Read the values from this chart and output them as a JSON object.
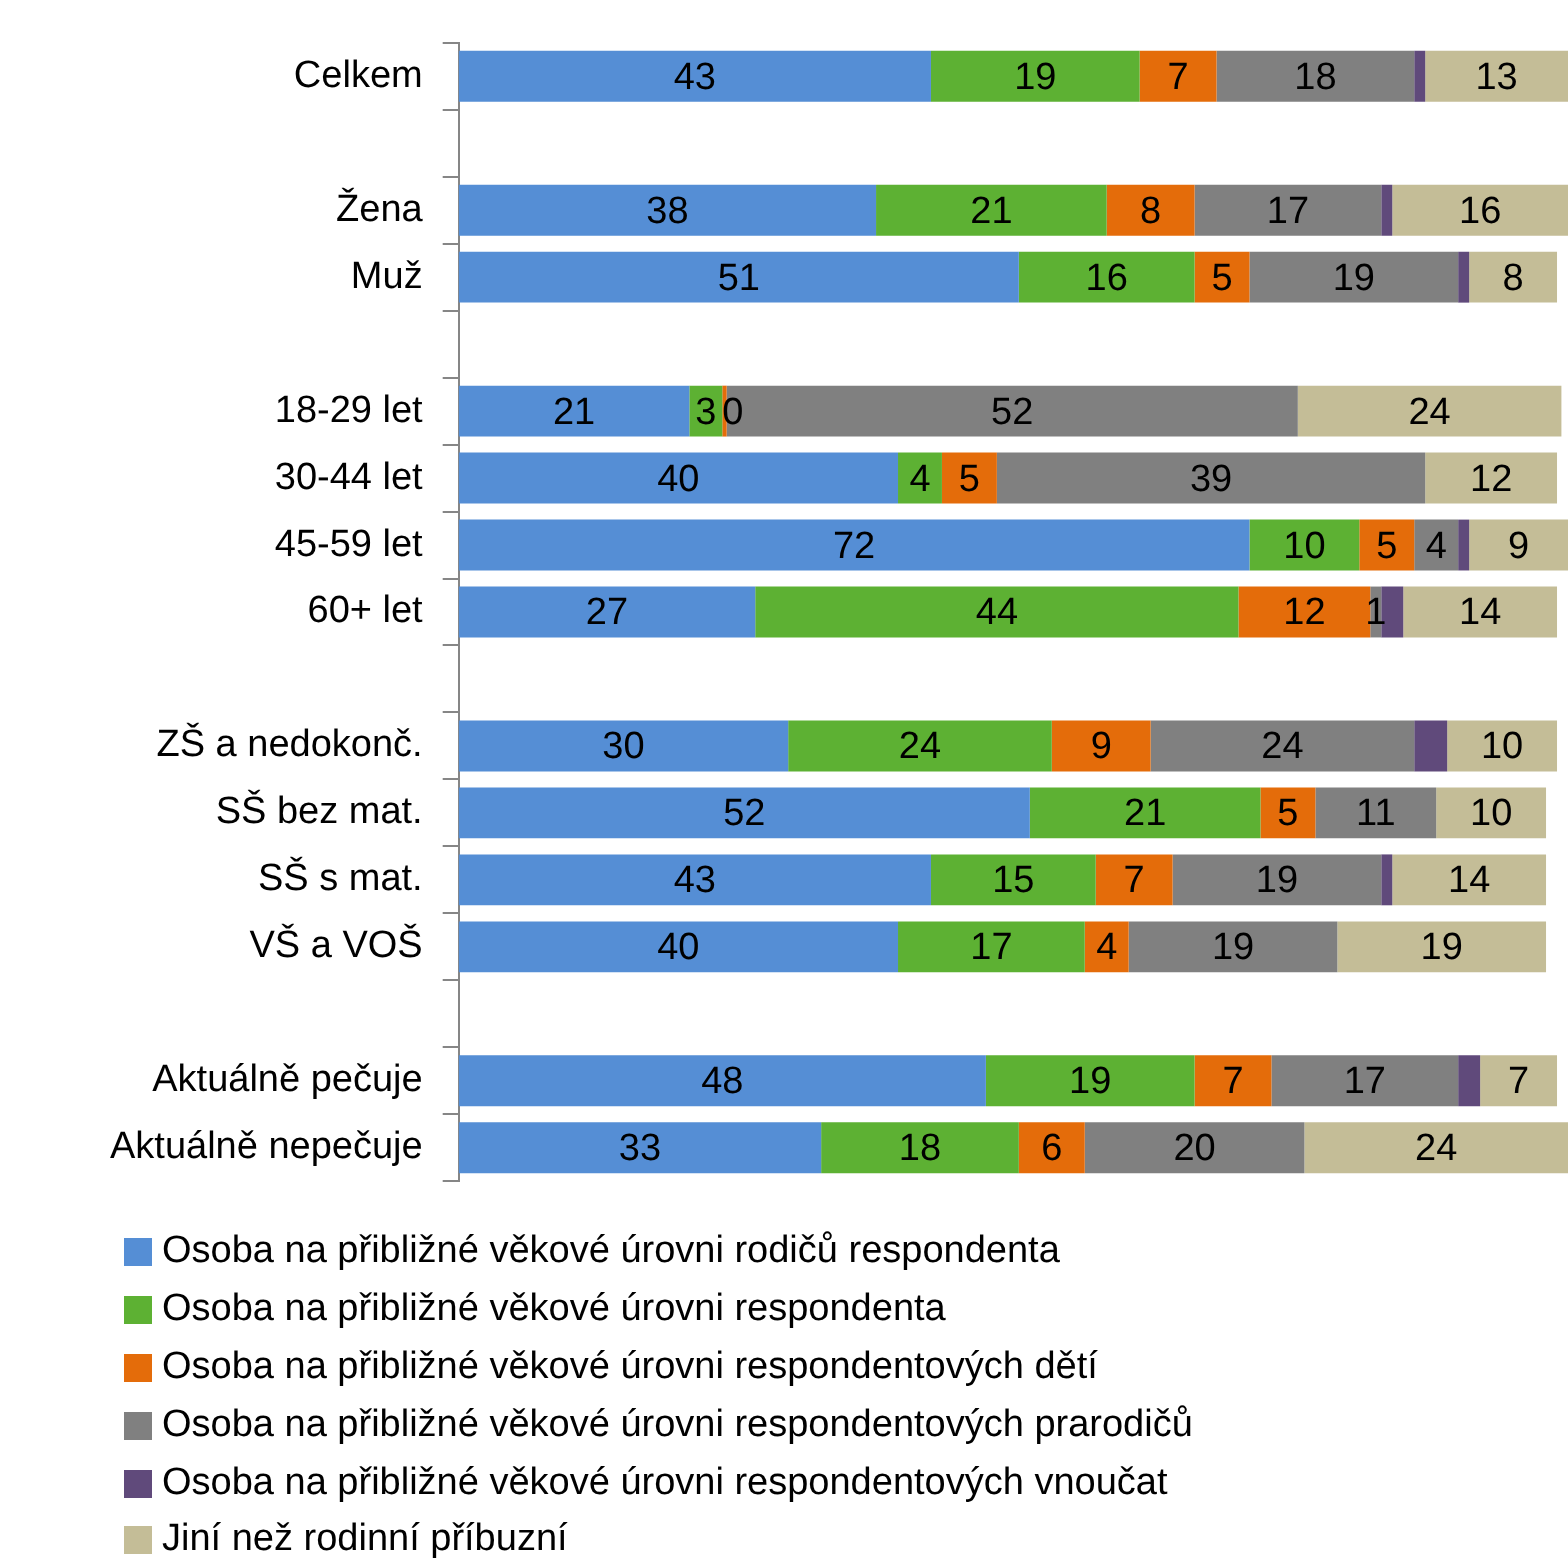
{
  "chart_data": {
    "type": "bar",
    "orientation": "horizontal",
    "stacked": true,
    "grid": false,
    "legend": "bottom",
    "xlim": [
      0,
      101
    ],
    "tick_labels": "y",
    "categories": [
      "Celkem",
      null,
      "Žena",
      "Muž",
      null,
      "18-29 let",
      "30-44 let",
      "45-59 let",
      "60+ let",
      null,
      "ZŠ a nedokonč.",
      "SŠ bez mat.",
      "SŠ s mat.",
      "VŠ a VOŠ",
      null,
      "Aktuálně pečuje",
      "Aktuálně nepečuje"
    ],
    "series": [
      {
        "name": "Osoba na přibližné věkové úrovni rodičů respondenta",
        "color": "#558ed5",
        "values": [
          43,
          null,
          38,
          51,
          null,
          21,
          40,
          72,
          27,
          null,
          30,
          52,
          43,
          40,
          null,
          48,
          33
        ],
        "value_labels": [
          "43",
          null,
          "38",
          "51",
          null,
          "21",
          "40",
          "72",
          "27",
          null,
          "30",
          "52",
          "43",
          "40",
          null,
          "48",
          "33"
        ]
      },
      {
        "name": "Osoba na přibližné věkové úrovni respondenta",
        "color": "#5db133",
        "values": [
          19,
          null,
          21,
          16,
          null,
          3,
          4,
          10,
          44,
          null,
          24,
          21,
          15,
          17,
          null,
          19,
          18
        ],
        "value_labels": [
          "19",
          null,
          "21",
          "16",
          null,
          "3",
          "4",
          "10",
          "44",
          null,
          "24",
          "21",
          "15",
          "17",
          null,
          "19",
          "18"
        ]
      },
      {
        "name": "Osoba na přibližné věkové úrovni respondentových dětí",
        "color": "#e46c0a",
        "values": [
          7,
          null,
          8,
          5,
          null,
          0.4,
          5,
          5,
          12,
          null,
          9,
          5,
          7,
          4,
          null,
          7,
          6
        ],
        "value_labels": [
          "7",
          null,
          "8",
          "5",
          null,
          "0",
          "5",
          "5",
          "12",
          null,
          "9",
          "5",
          "7",
          "4",
          null,
          "7",
          "6"
        ]
      },
      {
        "name": "Osoba na přibližné věkové úrovni respondentových prarodičů",
        "color": "#808080",
        "values": [
          18,
          null,
          17,
          19,
          null,
          52,
          39,
          4,
          1,
          null,
          24,
          11,
          19,
          19,
          null,
          17,
          20
        ],
        "value_labels": [
          "18",
          null,
          "17",
          "19",
          null,
          "52",
          "39",
          "4",
          "1",
          null,
          "24",
          "11",
          "19",
          "19",
          null,
          "17",
          "20"
        ]
      },
      {
        "name": "Osoba na přibližné věkové úrovni respondentových vnoučat",
        "color": "#604a7b",
        "values": [
          1,
          null,
          1,
          1,
          null,
          0,
          0,
          1,
          2,
          null,
          3,
          0,
          1,
          0,
          null,
          2,
          0
        ],
        "value_labels": [
          null,
          null,
          null,
          null,
          null,
          null,
          null,
          null,
          null,
          null,
          null,
          null,
          null,
          null,
          null,
          null,
          null
        ]
      },
      {
        "name": "Jiní než rodinní příbuzní",
        "color": "#c4bd97",
        "values": [
          13,
          null,
          16,
          8,
          null,
          24,
          12,
          9,
          14,
          null,
          10,
          10,
          14,
          19,
          null,
          7,
          24
        ],
        "value_labels": [
          "13",
          null,
          "16",
          "8",
          null,
          "24",
          "12",
          "9",
          "14",
          null,
          "10",
          "10",
          "14",
          "19",
          null,
          "7",
          "24"
        ]
      }
    ]
  }
}
